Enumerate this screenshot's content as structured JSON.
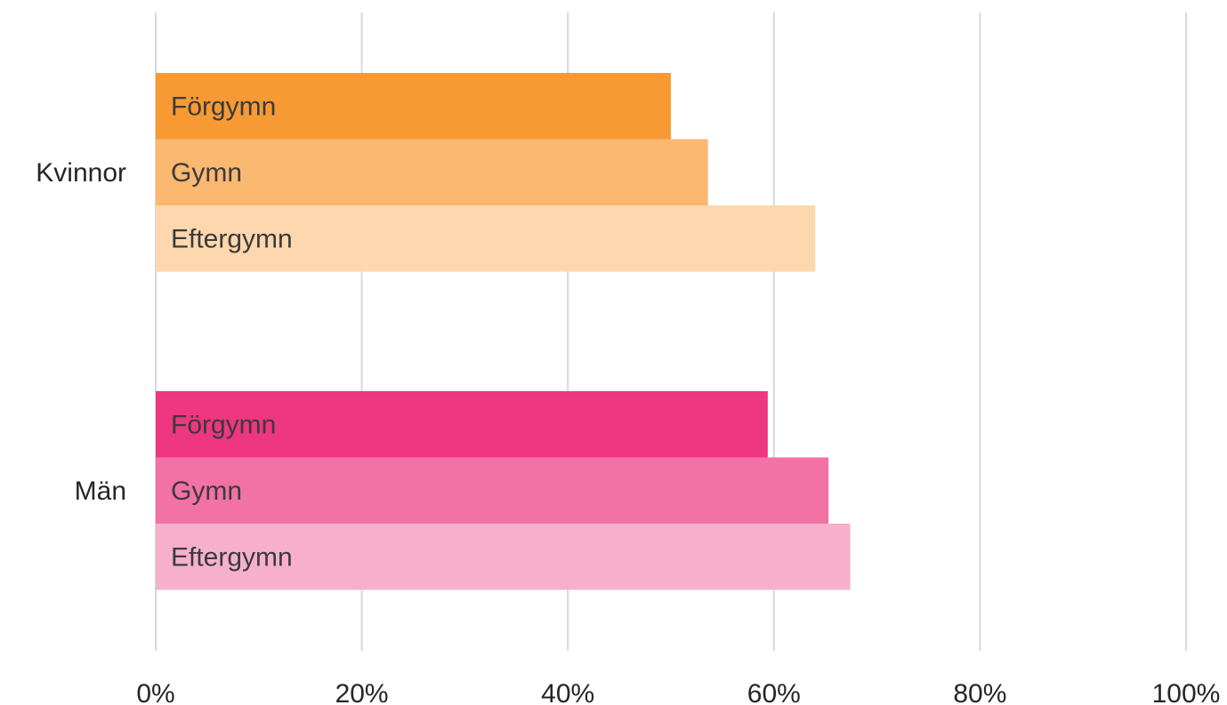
{
  "chart_data": {
    "type": "bar",
    "orientation": "horizontal",
    "title": "",
    "xlabel": "",
    "ylabel": "",
    "xlim": [
      0,
      100
    ],
    "x_ticks": [
      "0%",
      "20%",
      "40%",
      "60%",
      "80%",
      "100%"
    ],
    "grid": true,
    "legend": "none",
    "groups": [
      {
        "label": "Kvinnor",
        "bars": [
          {
            "label": "Förgymn",
            "value": 50,
            "color": "#f79a34"
          },
          {
            "label": "Gymn",
            "value": 53.6,
            "color": "#fab871"
          },
          {
            "label": "Eftergymn",
            "value": 64,
            "color": "#fdd7ae"
          }
        ]
      },
      {
        "label": "Män",
        "bars": [
          {
            "label": "Förgymn",
            "value": 59.4,
            "color": "#ef3680"
          },
          {
            "label": "Gymn",
            "value": 65.3,
            "color": "#f372a5"
          },
          {
            "label": "Eftergymn",
            "value": 67.4,
            "color": "#f7b0cc"
          }
        ]
      }
    ]
  }
}
